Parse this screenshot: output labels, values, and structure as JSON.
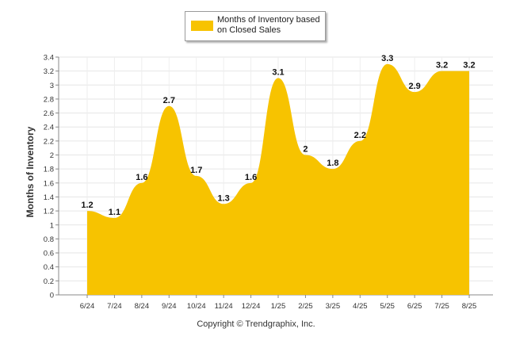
{
  "chart_data": {
    "type": "area",
    "categories": [
      "6/24",
      "7/24",
      "8/24",
      "9/24",
      "10/24",
      "11/24",
      "12/24",
      "1/25",
      "2/25",
      "3/25",
      "4/25",
      "5/25",
      "6/25",
      "7/25",
      "8/25"
    ],
    "series": [
      {
        "name": "Months of Inventory based on Closed Sales",
        "values": [
          1.2,
          1.1,
          1.6,
          2.7,
          1.7,
          1.3,
          1.6,
          3.1,
          2,
          1.8,
          2.2,
          3.3,
          2.9,
          3.2,
          3.2
        ],
        "labels": [
          "1.2",
          "1.1",
          "1.6",
          "2.7",
          "1.7",
          "1.3",
          "1.6",
          "3.1",
          "2",
          "1.8",
          "2.2",
          "3.3",
          "2.9",
          "3.2",
          "3.2"
        ]
      }
    ],
    "ylabel": "Months of Inventory",
    "ylim": [
      0,
      3.4
    ],
    "yticks": [
      "0",
      "0.2",
      "0.4",
      "0.6",
      "0.8",
      "1",
      "1.2",
      "1.4",
      "1.6",
      "1.8",
      "2",
      "2.2",
      "2.4",
      "2.6",
      "2.8",
      "3",
      "3.2",
      "3.4"
    ],
    "grid": true,
    "legend_position": "top-center",
    "fill_color": "#F7C300"
  },
  "legend": {
    "label": "Months of Inventory based on Closed Sales"
  },
  "footer": {
    "copyright": "Copyright © Trendgraphix, Inc."
  }
}
